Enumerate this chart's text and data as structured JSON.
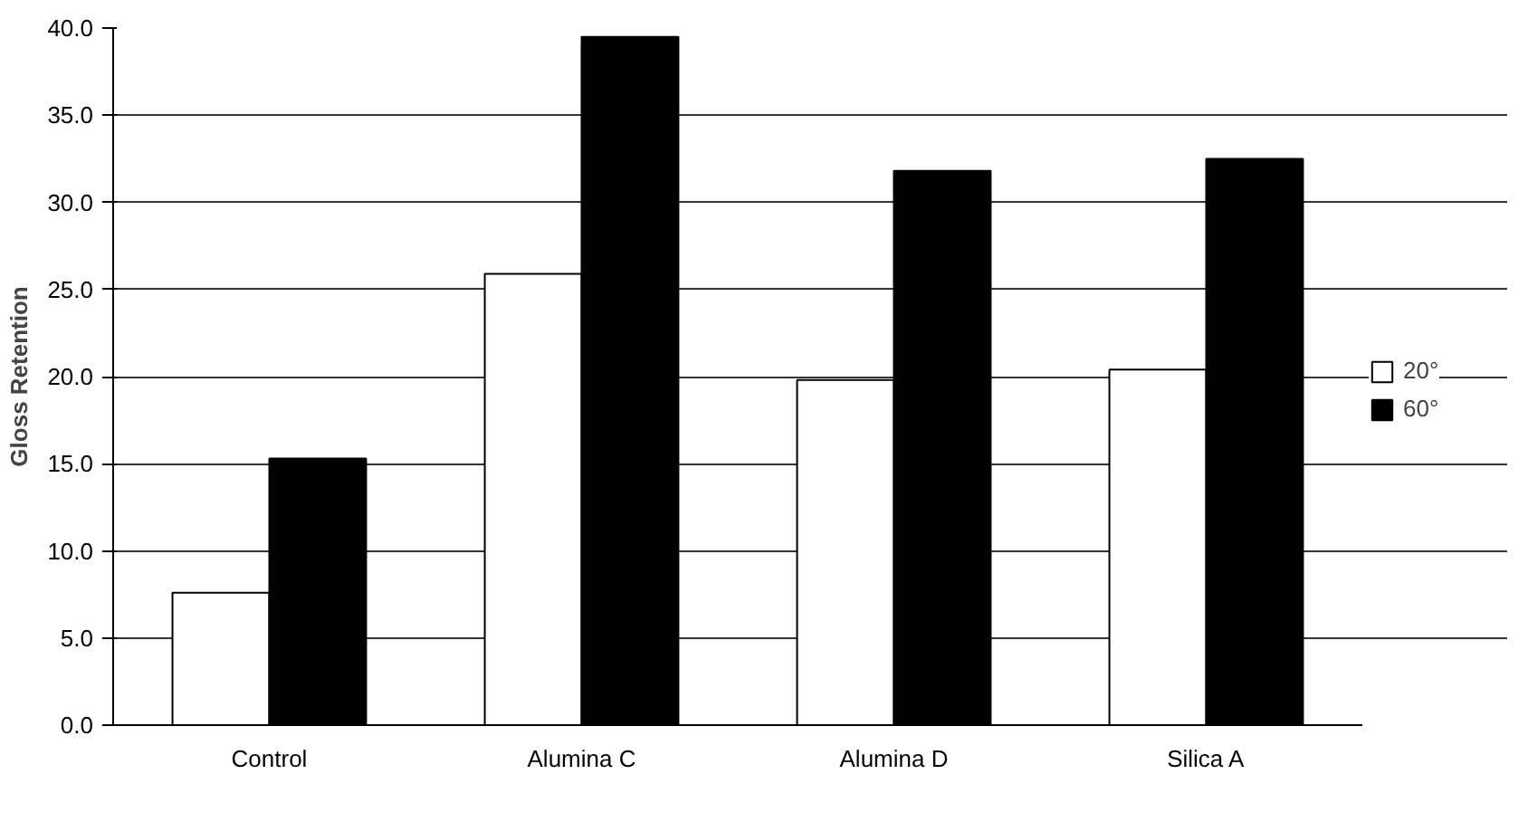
{
  "chart_data": {
    "type": "bar",
    "ylabel": "Gloss Retention",
    "categories": [
      "Control",
      "Alumina C",
      "Alumina D",
      "Silica A"
    ],
    "series": [
      {
        "name": "20°",
        "color": "#ffffff",
        "values": [
          7.6,
          25.9,
          19.8,
          20.4
        ]
      },
      {
        "name": "60°",
        "color": "#000000",
        "values": [
          15.3,
          39.5,
          31.8,
          32.5
        ]
      }
    ],
    "ylim": [
      0,
      40
    ],
    "yticks": [
      {
        "value": 0,
        "label": "0.0"
      },
      {
        "value": 5,
        "label": "5.0"
      },
      {
        "value": 10,
        "label": "10.0"
      },
      {
        "value": 15,
        "label": "15.0"
      },
      {
        "value": 20,
        "label": "20.0"
      },
      {
        "value": 25,
        "label": "25.0"
      },
      {
        "value": 30,
        "label": "30.0"
      },
      {
        "value": 35,
        "label": "35.0"
      },
      {
        "value": 40,
        "label": "40.0"
      }
    ],
    "grid": "y",
    "legend": "right"
  }
}
